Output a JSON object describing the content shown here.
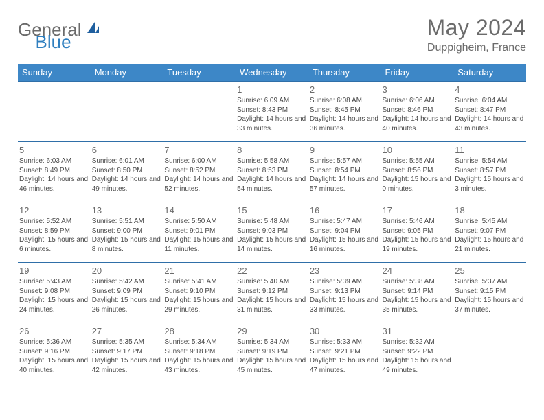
{
  "logo": {
    "part1": "General",
    "part2": "Blue"
  },
  "title": "May 2024",
  "location": "Duppigheim, France",
  "day_headers": [
    "Sunday",
    "Monday",
    "Tuesday",
    "Wednesday",
    "Thursday",
    "Friday",
    "Saturday"
  ],
  "colors": {
    "header_bg": "#3d87c7",
    "header_text": "#ffffff",
    "rule": "#2f6fa8",
    "text": "#4a4a4a",
    "title_gray": "#6b6b6b",
    "logo_blue": "#2f7fbf"
  },
  "weeks": [
    [
      null,
      null,
      null,
      {
        "date": "1",
        "sunrise": "6:09 AM",
        "sunset": "8:43 PM",
        "daylight": "14 hours and 33 minutes."
      },
      {
        "date": "2",
        "sunrise": "6:08 AM",
        "sunset": "8:45 PM",
        "daylight": "14 hours and 36 minutes."
      },
      {
        "date": "3",
        "sunrise": "6:06 AM",
        "sunset": "8:46 PM",
        "daylight": "14 hours and 40 minutes."
      },
      {
        "date": "4",
        "sunrise": "6:04 AM",
        "sunset": "8:47 PM",
        "daylight": "14 hours and 43 minutes."
      }
    ],
    [
      {
        "date": "5",
        "sunrise": "6:03 AM",
        "sunset": "8:49 PM",
        "daylight": "14 hours and 46 minutes."
      },
      {
        "date": "6",
        "sunrise": "6:01 AM",
        "sunset": "8:50 PM",
        "daylight": "14 hours and 49 minutes."
      },
      {
        "date": "7",
        "sunrise": "6:00 AM",
        "sunset": "8:52 PM",
        "daylight": "14 hours and 52 minutes."
      },
      {
        "date": "8",
        "sunrise": "5:58 AM",
        "sunset": "8:53 PM",
        "daylight": "14 hours and 54 minutes."
      },
      {
        "date": "9",
        "sunrise": "5:57 AM",
        "sunset": "8:54 PM",
        "daylight": "14 hours and 57 minutes."
      },
      {
        "date": "10",
        "sunrise": "5:55 AM",
        "sunset": "8:56 PM",
        "daylight": "15 hours and 0 minutes."
      },
      {
        "date": "11",
        "sunrise": "5:54 AM",
        "sunset": "8:57 PM",
        "daylight": "15 hours and 3 minutes."
      }
    ],
    [
      {
        "date": "12",
        "sunrise": "5:52 AM",
        "sunset": "8:59 PM",
        "daylight": "15 hours and 6 minutes."
      },
      {
        "date": "13",
        "sunrise": "5:51 AM",
        "sunset": "9:00 PM",
        "daylight": "15 hours and 8 minutes."
      },
      {
        "date": "14",
        "sunrise": "5:50 AM",
        "sunset": "9:01 PM",
        "daylight": "15 hours and 11 minutes."
      },
      {
        "date": "15",
        "sunrise": "5:48 AM",
        "sunset": "9:03 PM",
        "daylight": "15 hours and 14 minutes."
      },
      {
        "date": "16",
        "sunrise": "5:47 AM",
        "sunset": "9:04 PM",
        "daylight": "15 hours and 16 minutes."
      },
      {
        "date": "17",
        "sunrise": "5:46 AM",
        "sunset": "9:05 PM",
        "daylight": "15 hours and 19 minutes."
      },
      {
        "date": "18",
        "sunrise": "5:45 AM",
        "sunset": "9:07 PM",
        "daylight": "15 hours and 21 minutes."
      }
    ],
    [
      {
        "date": "19",
        "sunrise": "5:43 AM",
        "sunset": "9:08 PM",
        "daylight": "15 hours and 24 minutes."
      },
      {
        "date": "20",
        "sunrise": "5:42 AM",
        "sunset": "9:09 PM",
        "daylight": "15 hours and 26 minutes."
      },
      {
        "date": "21",
        "sunrise": "5:41 AM",
        "sunset": "9:10 PM",
        "daylight": "15 hours and 29 minutes."
      },
      {
        "date": "22",
        "sunrise": "5:40 AM",
        "sunset": "9:12 PM",
        "daylight": "15 hours and 31 minutes."
      },
      {
        "date": "23",
        "sunrise": "5:39 AM",
        "sunset": "9:13 PM",
        "daylight": "15 hours and 33 minutes."
      },
      {
        "date": "24",
        "sunrise": "5:38 AM",
        "sunset": "9:14 PM",
        "daylight": "15 hours and 35 minutes."
      },
      {
        "date": "25",
        "sunrise": "5:37 AM",
        "sunset": "9:15 PM",
        "daylight": "15 hours and 37 minutes."
      }
    ],
    [
      {
        "date": "26",
        "sunrise": "5:36 AM",
        "sunset": "9:16 PM",
        "daylight": "15 hours and 40 minutes."
      },
      {
        "date": "27",
        "sunrise": "5:35 AM",
        "sunset": "9:17 PM",
        "daylight": "15 hours and 42 minutes."
      },
      {
        "date": "28",
        "sunrise": "5:34 AM",
        "sunset": "9:18 PM",
        "daylight": "15 hours and 43 minutes."
      },
      {
        "date": "29",
        "sunrise": "5:34 AM",
        "sunset": "9:19 PM",
        "daylight": "15 hours and 45 minutes."
      },
      {
        "date": "30",
        "sunrise": "5:33 AM",
        "sunset": "9:21 PM",
        "daylight": "15 hours and 47 minutes."
      },
      {
        "date": "31",
        "sunrise": "5:32 AM",
        "sunset": "9:22 PM",
        "daylight": "15 hours and 49 minutes."
      },
      null
    ]
  ],
  "labels": {
    "sunrise": "Sunrise:",
    "sunset": "Sunset:",
    "daylight": "Daylight:"
  }
}
